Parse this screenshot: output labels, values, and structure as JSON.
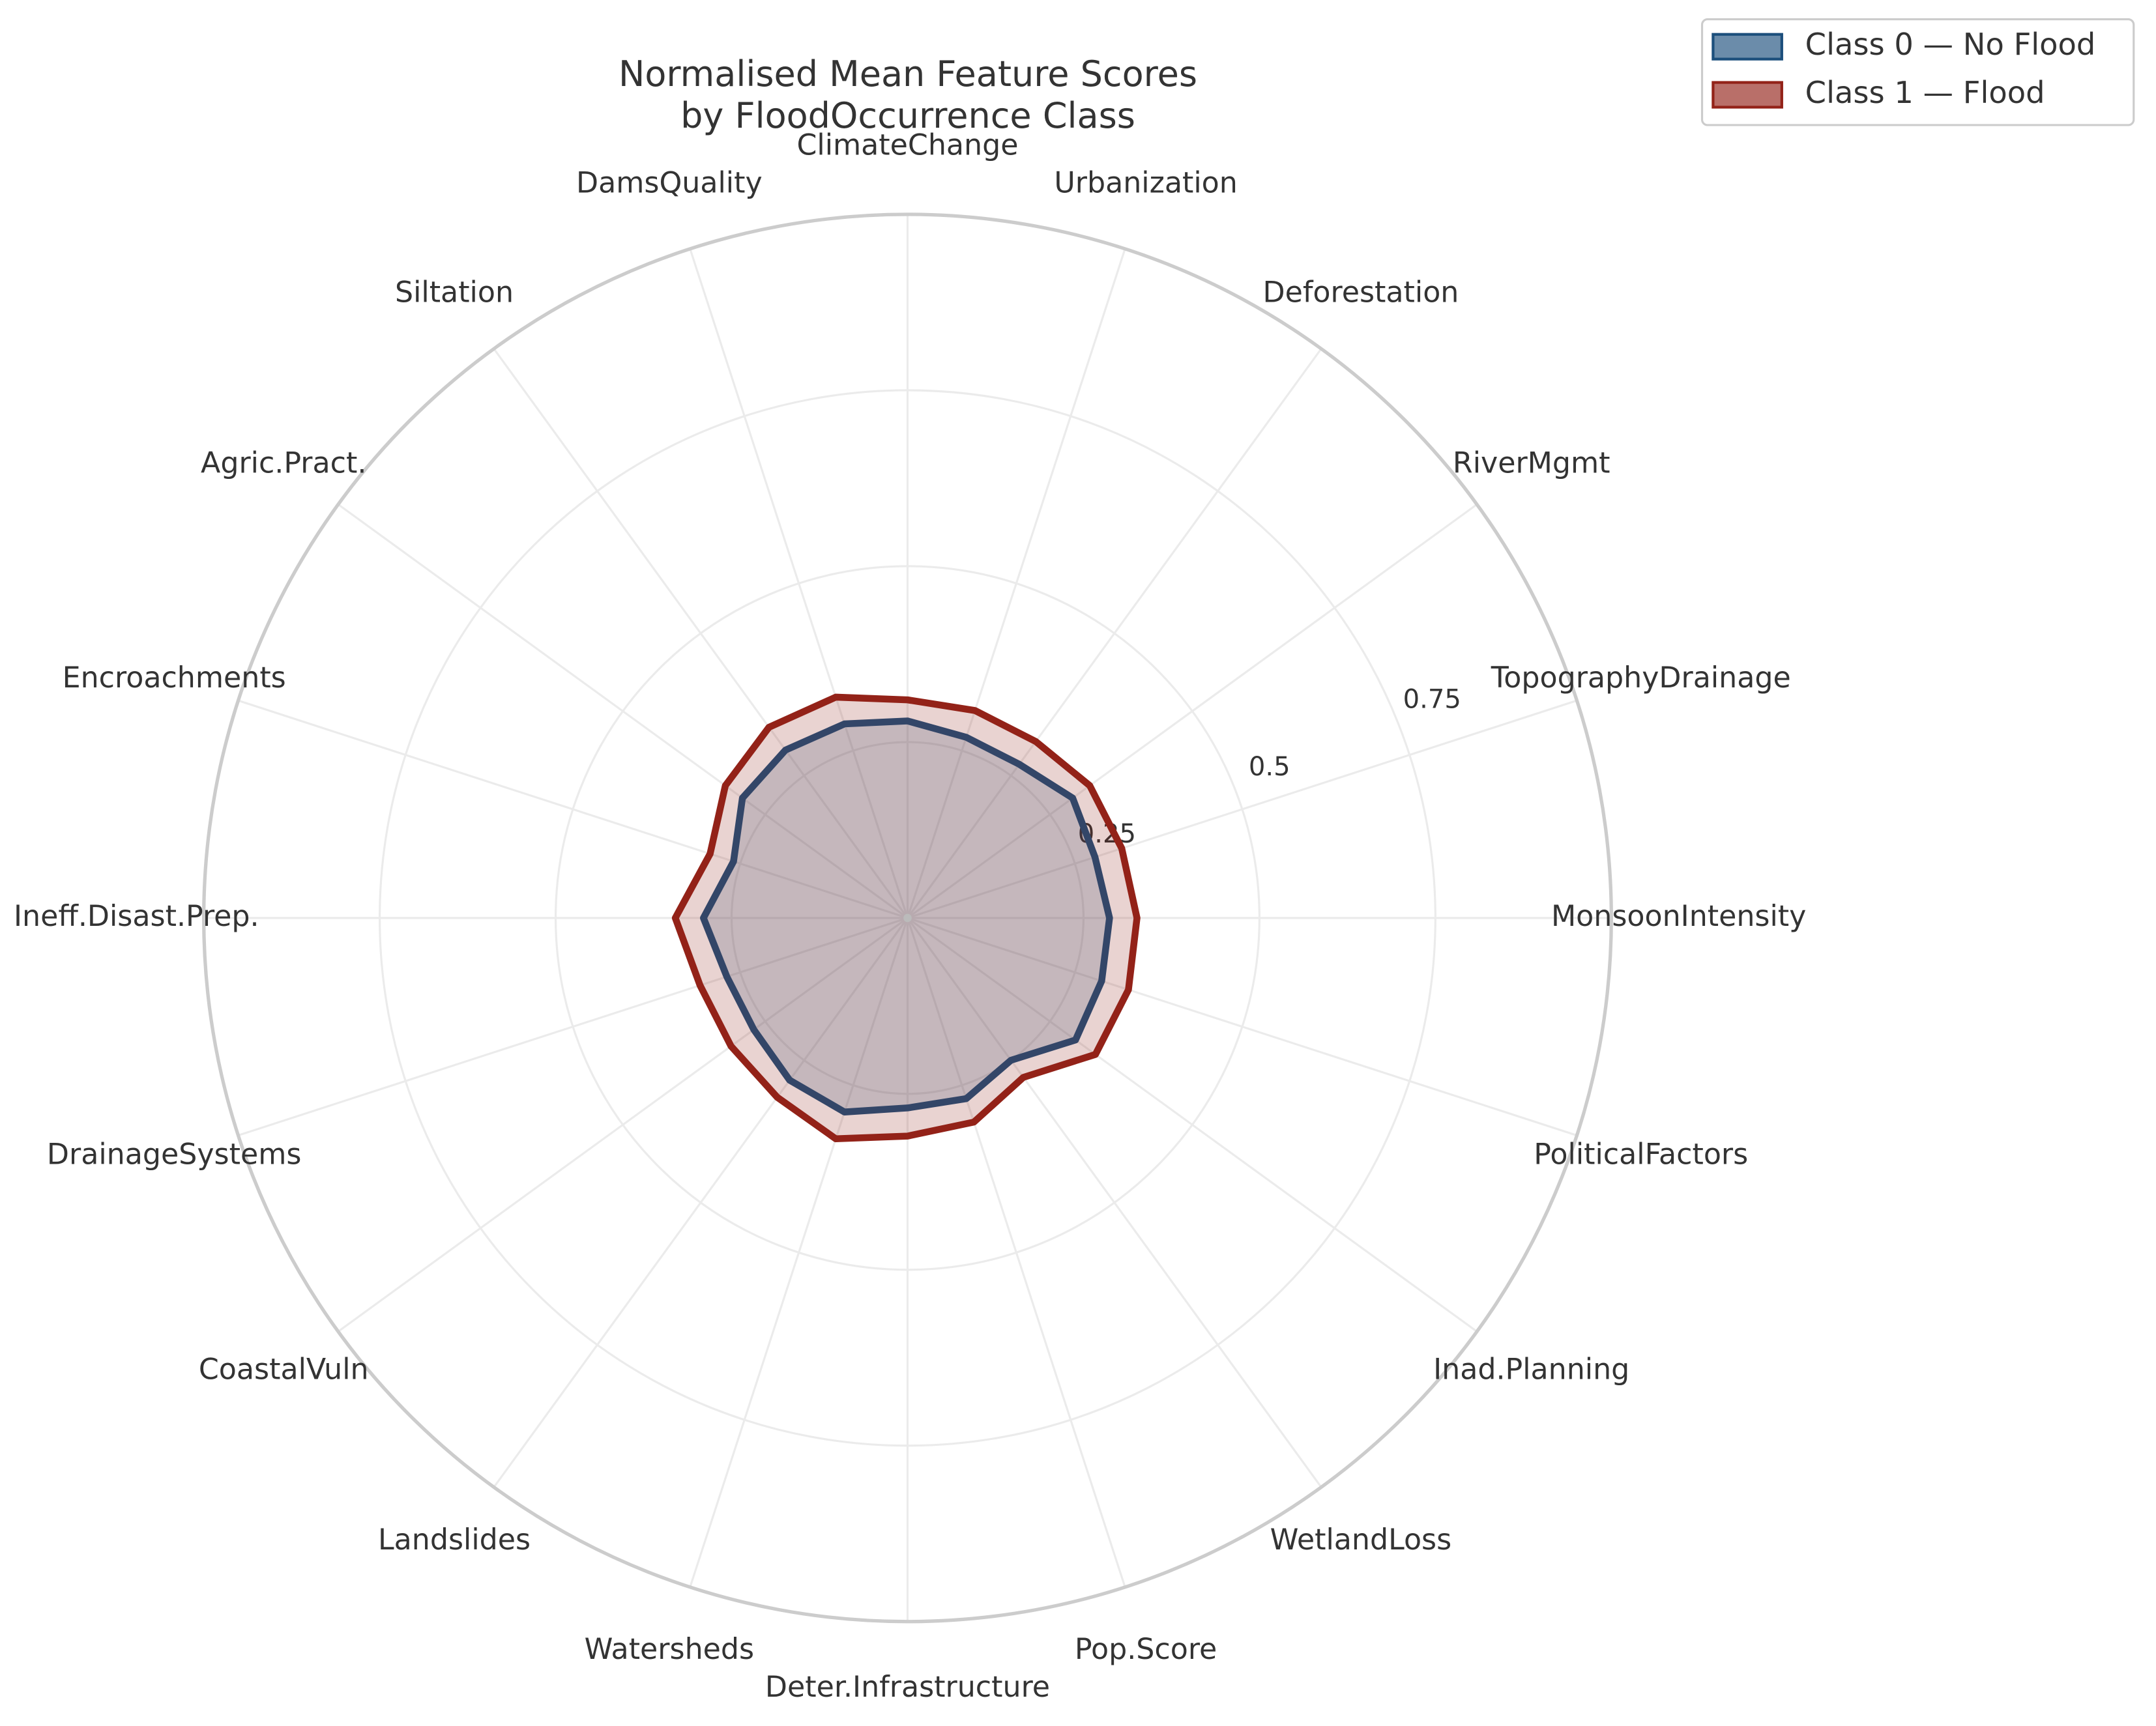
{
  "chart_data": {
    "type": "radar",
    "title": "Normalised Mean Feature Scores\nby FloodOccurrence Class",
    "categories": [
      "MonsoonIntensity",
      "TopographyDrainage",
      "RiverMgmt",
      "Deforestation",
      "Urbanization",
      "ClimateChange",
      "DamsQuality",
      "Siltation",
      "Agric.Pract.",
      "Encroachments",
      "Ineff.Disast.Prep.",
      "DrainageSystems",
      "CoastalVuln",
      "Landslides",
      "Watersheds",
      "Deter.Infrastructure",
      "Pop.Score",
      "WetlandLoss",
      "Inad.Planning",
      "PoliticalFactors"
    ],
    "series": [
      {
        "name": "Class 0 — No Flood",
        "color": "#1c4f7c",
        "values": [
          0.287,
          0.28,
          0.29,
          0.27,
          0.27,
          0.28,
          0.29,
          0.295,
          0.29,
          0.26,
          0.29,
          0.27,
          0.27,
          0.285,
          0.29,
          0.27,
          0.27,
          0.25,
          0.295,
          0.29
        ]
      },
      {
        "name": "Class 1 — Flood",
        "color": "#932218",
        "values": [
          0.326,
          0.32,
          0.32,
          0.31,
          0.31,
          0.31,
          0.33,
          0.335,
          0.32,
          0.295,
          0.33,
          0.31,
          0.31,
          0.315,
          0.33,
          0.31,
          0.305,
          0.28,
          0.33,
          0.33
        ]
      }
    ],
    "ylim": [
      0,
      1
    ],
    "yticks": [
      0.25,
      0.5,
      0.75
    ],
    "grid": true,
    "legend": "upper right"
  }
}
